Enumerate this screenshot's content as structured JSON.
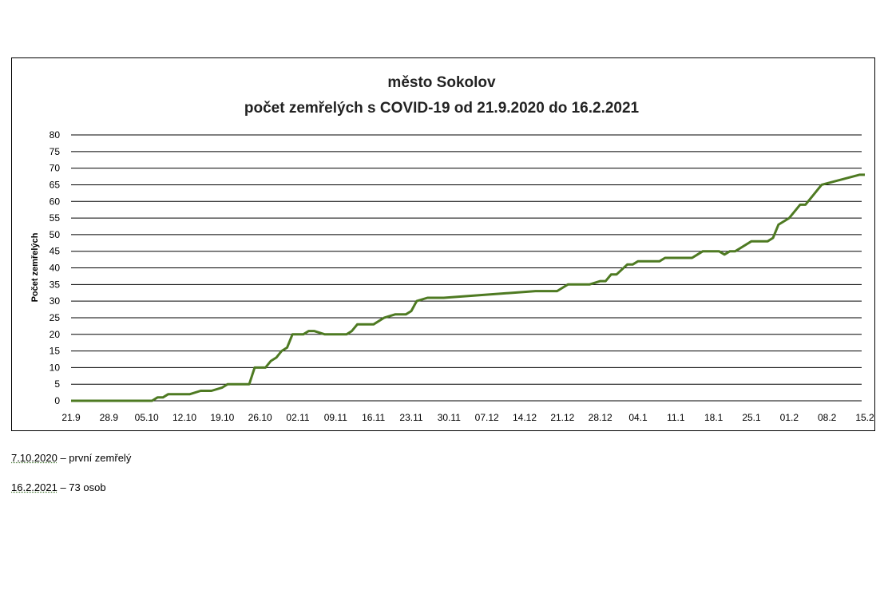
{
  "chart_data": {
    "type": "line",
    "title": [
      "město Sokolov",
      "počet zemřelých s COVID-19 od 21.9.2020  do 16.2.2021"
    ],
    "xlabel": "",
    "ylabel": "Počet zemřelých",
    "ylim": [
      0,
      80
    ],
    "yticks": [
      0,
      5,
      10,
      15,
      20,
      25,
      30,
      35,
      40,
      45,
      50,
      55,
      60,
      65,
      70,
      75,
      80
    ],
    "xticks": [
      "21.9",
      "28.9",
      "05.10",
      "12.10",
      "19.10",
      "26.10",
      "02.11",
      "09.11",
      "16.11",
      "23.11",
      "30.11",
      "07.12",
      "14.12",
      "21.12",
      "28.12",
      "04.1",
      "11.1",
      "18.1",
      "25.1",
      "01.2",
      "08.2",
      "15.2"
    ],
    "grid": true,
    "line_color": "#4e7a22",
    "series": [
      {
        "x": [
          0,
          15,
          16,
          17,
          18,
          20,
          22,
          24,
          25,
          26,
          28,
          29,
          31,
          33,
          34,
          35,
          36,
          37,
          38,
          39,
          40,
          41,
          43,
          44,
          45,
          47,
          49,
          51,
          52,
          53,
          54,
          56,
          58,
          60,
          62,
          63,
          64,
          66,
          69,
          86,
          87,
          88,
          90,
          91,
          92,
          93,
          94,
          95,
          96,
          98,
          99,
          100,
          101,
          103,
          104,
          105,
          106,
          107,
          109,
          110,
          111,
          112,
          113,
          115,
          116,
          117,
          118,
          119,
          120,
          121,
          122,
          123,
          124,
          126,
          127,
          128,
          129,
          130,
          131,
          133,
          135,
          136,
          137,
          138,
          139,
          146,
          147
        ],
        "y": [
          0,
          0,
          1,
          1,
          2,
          2,
          2,
          3,
          3,
          3,
          4,
          5,
          5,
          5,
          10,
          10,
          10,
          12,
          13,
          15,
          16,
          20,
          20,
          21,
          21,
          20,
          20,
          20,
          21,
          23,
          23,
          23,
          25,
          26,
          26,
          27,
          30,
          31,
          31,
          33,
          33,
          33,
          33,
          34,
          35,
          35,
          35,
          35,
          35,
          36,
          36,
          38,
          38,
          41,
          41,
          42,
          42,
          42,
          42,
          43,
          43,
          43,
          43,
          43,
          44,
          45,
          45,
          45,
          45,
          44,
          45,
          45,
          46,
          48,
          48,
          48,
          48,
          49,
          53,
          55,
          59,
          59,
          61,
          63,
          65,
          68,
          68
        ]
      }
    ]
  },
  "notes": [
    {
      "date": "7.10.2020",
      "text": " – první zemřelý"
    },
    {
      "date": "16.2.2021",
      "text": " – 73 osob"
    }
  ]
}
